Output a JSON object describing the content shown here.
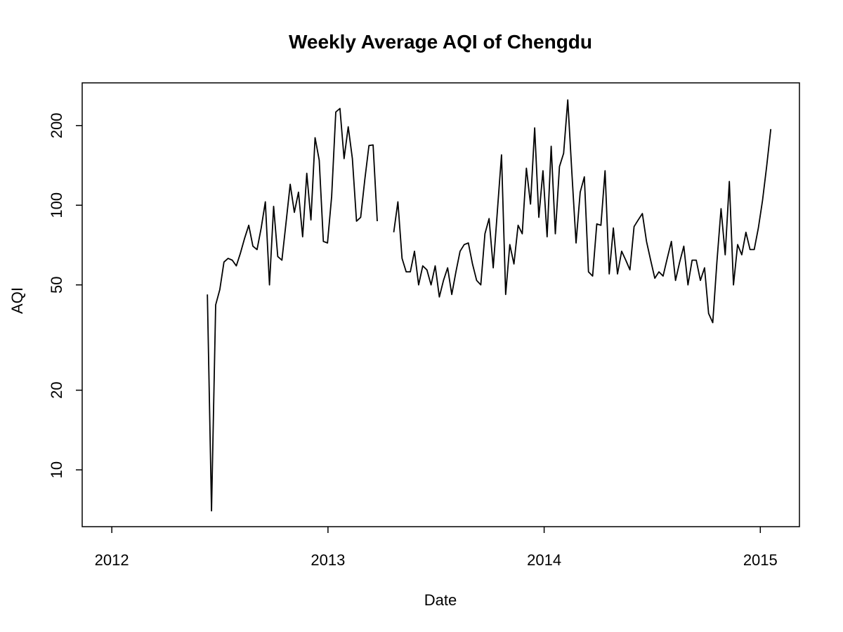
{
  "chart_data": {
    "type": "line",
    "title": "Weekly Average AQI of Chengdu",
    "xlabel": "Date",
    "ylabel": "AQI",
    "y_scale": "log",
    "grid": false,
    "legend": null,
    "line_color": "#000000",
    "x_ticks": [
      "2012",
      "2013",
      "2014",
      "2015"
    ],
    "x_tick_years": [
      2012,
      2013,
      2014,
      2015
    ],
    "y_ticks": [
      "10",
      "20",
      "50",
      "100",
      "200"
    ],
    "y_tick_values": [
      10,
      20,
      50,
      100,
      200
    ],
    "xlim_years": [
      2011.863,
      2015.181
    ],
    "ylim": [
      6.1,
      290
    ],
    "series": [
      {
        "name": "Weekly Average AQI",
        "x_start_year": 2012.442,
        "x_step_years": 0.019165,
        "values": [
          46,
          7,
          42,
          48,
          61,
          63,
          62,
          59,
          66,
          75,
          84,
          70,
          68,
          82,
          103,
          50,
          99,
          64,
          62,
          86,
          120,
          94,
          112,
          76,
          132,
          88,
          180,
          148,
          73,
          72,
          108,
          225,
          232,
          150,
          198,
          150,
          87,
          90,
          125,
          168,
          169,
          87,
          null,
          null,
          null,
          79,
          103,
          63,
          56,
          56,
          67,
          50,
          59,
          57,
          50,
          59,
          45,
          52,
          58,
          46,
          56,
          67,
          71,
          72,
          60,
          52,
          50,
          78,
          89,
          58,
          95,
          155,
          46,
          71,
          60,
          84,
          78,
          138,
          101,
          196,
          90,
          135,
          76,
          167,
          78,
          140,
          157,
          250,
          132,
          72,
          112,
          128,
          56,
          54,
          85,
          84,
          135,
          55,
          82,
          55,
          67,
          62,
          57,
          83,
          88,
          93,
          73,
          62,
          53,
          56,
          54,
          63,
          73,
          52,
          61,
          70,
          50,
          62,
          62,
          52,
          58,
          39,
          36,
          61,
          97,
          65,
          123,
          50,
          71,
          65,
          79,
          68,
          68,
          82,
          104,
          140,
          194
        ]
      }
    ]
  }
}
